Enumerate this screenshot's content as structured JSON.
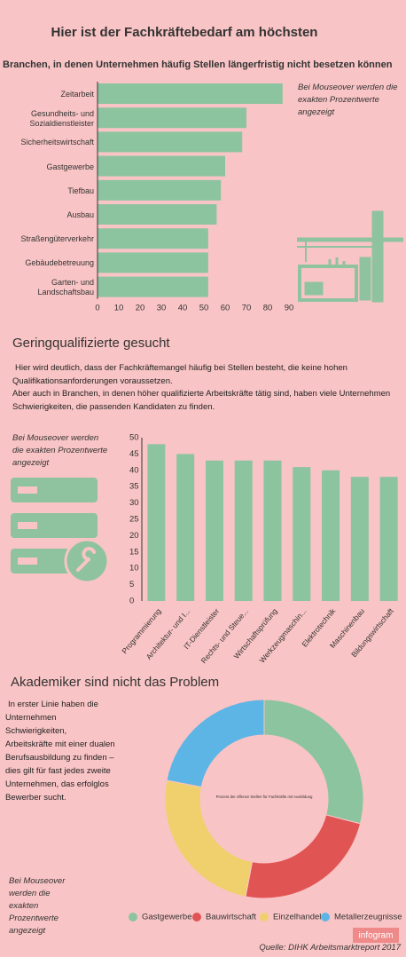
{
  "title": "Hier ist der Fachkräftebedarf am höchsten",
  "chart_data": [
    {
      "type": "bar",
      "orientation": "horizontal",
      "title": "Branchen, in denen Unternehmen häufig Stellen längerfristig nicht besetzen können",
      "annotation": "Bei Mouseover werden die exakten Prozentwerte angezeigt",
      "categories": [
        "Zeitarbeit",
        "Gesundheits- und Sozialdienstleister",
        "Sicherheitswirtschaft",
        "Gastgewerbe",
        "Tiefbau",
        "Ausbau",
        "Straßengüterverkehr",
        "Gebäudebetreuung",
        "Garten- und Landschaftsbau"
      ],
      "values": [
        87,
        70,
        68,
        60,
        58,
        56,
        52,
        52,
        52
      ],
      "color": "#8cc4a0",
      "xlim": [
        0,
        90
      ],
      "xticks": [
        0,
        10,
        20,
        30,
        40,
        50,
        60,
        70,
        80,
        90
      ],
      "grid": false
    },
    {
      "type": "bar",
      "orientation": "vertical",
      "title": "Geringqualifizierte gesucht",
      "description": [
        "Hier wird deutlich, dass der Fachkräftemangel häufig bei Stellen besteht, die keine hohen Qualifikationsanforderungen voraussetzen.",
        "Aber auch in Branchen, in denen höher qualifizierte Arbeitskräfte tätig sind, haben viele Unternehmen Schwierigkeiten, die passenden Kandidaten zu finden."
      ],
      "annotation": "Bei Mouseover werden die exakten Prozentwerte angezeigt",
      "categories": [
        "Programmierung",
        "Architektur- und I...",
        "IT-Dienstleister",
        "Rechts- und Steue...",
        "Wirtschaftsprüfung",
        "Werkzeugmaschin...",
        "Elektrotechnik",
        "Maschinenbau",
        "Bildungswirtschaft"
      ],
      "values": [
        48,
        45,
        43,
        43,
        43,
        41,
        40,
        38,
        38
      ],
      "color": "#8cc4a0",
      "ylim": [
        0,
        50
      ],
      "yticks": [
        0,
        5,
        10,
        15,
        20,
        25,
        30,
        35,
        40,
        45,
        50
      ],
      "grid": false
    },
    {
      "type": "donut",
      "title": "Akademiker sind nicht das Problem",
      "description": "In erster Linie haben die Unternehmen Schwierigkeiten, Arbeitskräfte mit einer dualen Berufsausbildung zu finden – dies gilt für fast jedes zweite Unternehmen, das erfolglos Bewerber sucht.",
      "annotation": "Bei Mouseover werden die exakten Prozentwerte angezeigt",
      "center_label": "Prozent der offenen Stellen für Fachkräfte mit Ausbildung",
      "categories": [
        "Gastgewerbe",
        "Bauwirtschaft",
        "Einzelhandel",
        "Metallerzeugnisse"
      ],
      "values": [
        29,
        24,
        25,
        22
      ],
      "colors": [
        "#8cc4a0",
        "#e05454",
        "#f0d06c",
        "#5db5e6"
      ]
    }
  ],
  "source": "Quelle: DIHK Arbeitsmarktreport 2017",
  "logo": "infogram"
}
